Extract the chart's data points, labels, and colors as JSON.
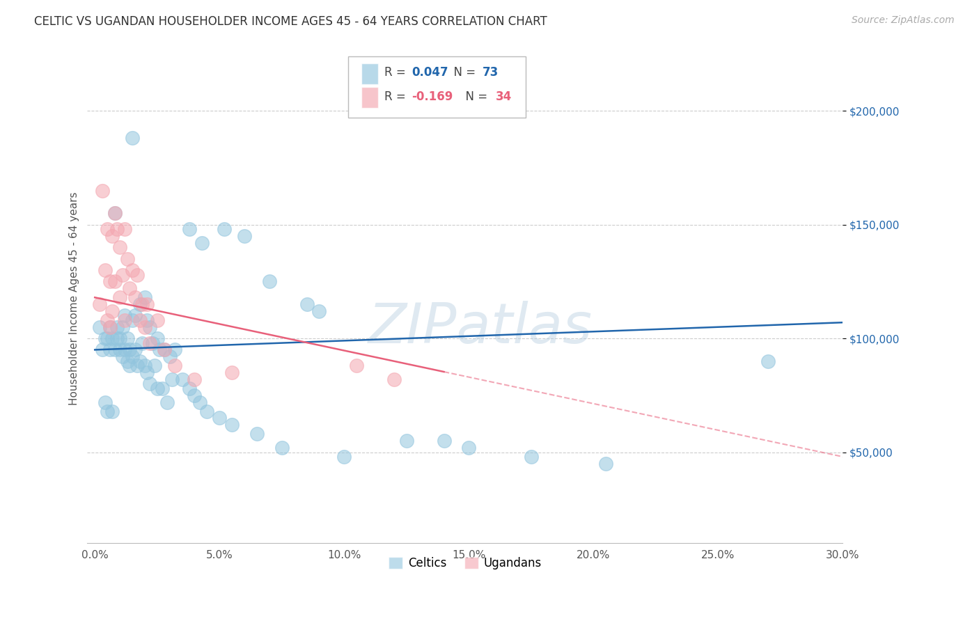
{
  "title": "CELTIC VS UGANDAN HOUSEHOLDER INCOME AGES 45 - 64 YEARS CORRELATION CHART",
  "source": "Source: ZipAtlas.com",
  "ylabel": "Householder Income Ages 45 - 64 years",
  "xlabel_ticks": [
    "0.0%",
    "5.0%",
    "10.0%",
    "15.0%",
    "20.0%",
    "25.0%",
    "30.0%"
  ],
  "xlabel_vals": [
    0.0,
    5.0,
    10.0,
    15.0,
    20.0,
    25.0,
    30.0
  ],
  "ylabel_ticks": [
    "$50,000",
    "$100,000",
    "$150,000",
    "$200,000"
  ],
  "ylabel_vals": [
    50000,
    100000,
    150000,
    200000
  ],
  "xlim": [
    -0.3,
    30.0
  ],
  "ylim": [
    10000,
    225000
  ],
  "r_celtic": 0.047,
  "n_celtic": 73,
  "r_ugandan": -0.169,
  "n_ugandan": 34,
  "celtic_color": "#92c5de",
  "ugandan_color": "#f4a6b0",
  "celtic_line_color": "#2166ac",
  "ugandan_line_color": "#e8607a",
  "watermark": "ZIPatlas",
  "celtic_line_x0": 0.0,
  "celtic_line_y0": 95000,
  "celtic_line_x1": 30.0,
  "celtic_line_y1": 107000,
  "ugandan_line_x0": 0.0,
  "ugandan_line_y0": 118000,
  "ugandan_line_x1": 30.0,
  "ugandan_line_y1": 48000,
  "ugandan_solid_end": 14.0,
  "celtic_points_x": [
    0.2,
    0.3,
    0.4,
    0.4,
    0.5,
    0.5,
    0.6,
    0.6,
    0.7,
    0.7,
    0.8,
    0.8,
    0.9,
    0.9,
    1.0,
    1.0,
    1.1,
    1.1,
    1.2,
    1.2,
    1.3,
    1.3,
    1.4,
    1.4,
    1.5,
    1.5,
    1.6,
    1.6,
    1.7,
    1.8,
    1.8,
    1.9,
    2.0,
    2.0,
    2.1,
    2.1,
    2.2,
    2.2,
    2.3,
    2.4,
    2.5,
    2.5,
    2.6,
    2.7,
    2.8,
    2.9,
    3.0,
    3.1,
    3.2,
    3.5,
    3.8,
    4.0,
    4.2,
    4.5,
    5.0,
    5.5,
    6.5,
    7.5,
    10.0,
    12.5,
    14.0,
    15.0,
    17.5,
    20.5,
    3.8,
    4.3,
    5.2,
    6.0,
    7.0,
    8.5,
    9.0,
    27.0,
    1.5
  ],
  "celtic_points_y": [
    105000,
    95000,
    100000,
    72000,
    100000,
    68000,
    95000,
    105000,
    100000,
    68000,
    155000,
    95000,
    100000,
    105000,
    95000,
    100000,
    105000,
    92000,
    110000,
    95000,
    100000,
    90000,
    95000,
    88000,
    108000,
    92000,
    110000,
    95000,
    88000,
    115000,
    90000,
    98000,
    118000,
    88000,
    108000,
    85000,
    105000,
    80000,
    98000,
    88000,
    100000,
    78000,
    95000,
    78000,
    95000,
    72000,
    92000,
    82000,
    95000,
    82000,
    78000,
    75000,
    72000,
    68000,
    65000,
    62000,
    58000,
    52000,
    48000,
    55000,
    55000,
    52000,
    48000,
    45000,
    148000,
    142000,
    148000,
    145000,
    125000,
    115000,
    112000,
    90000,
    188000
  ],
  "ugandan_points_x": [
    0.2,
    0.3,
    0.4,
    0.5,
    0.5,
    0.6,
    0.7,
    0.7,
    0.8,
    0.8,
    0.9,
    1.0,
    1.0,
    1.1,
    1.2,
    1.2,
    1.3,
    1.4,
    1.5,
    1.6,
    1.7,
    1.8,
    1.9,
    2.0,
    2.1,
    2.2,
    2.5,
    2.8,
    3.2,
    4.0,
    5.5,
    10.5,
    12.0,
    0.6
  ],
  "ugandan_points_y": [
    115000,
    165000,
    130000,
    148000,
    108000,
    125000,
    145000,
    112000,
    155000,
    125000,
    148000,
    140000,
    118000,
    128000,
    148000,
    108000,
    135000,
    122000,
    130000,
    118000,
    128000,
    108000,
    115000,
    105000,
    115000,
    98000,
    108000,
    95000,
    88000,
    82000,
    85000,
    88000,
    82000,
    105000
  ]
}
